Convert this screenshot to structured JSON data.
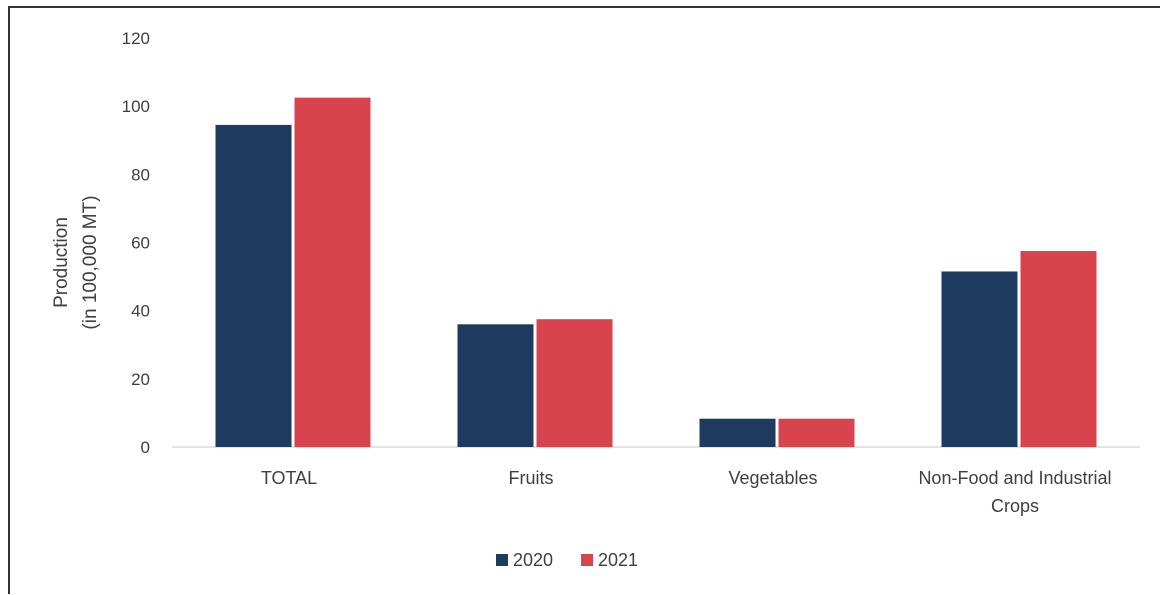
{
  "chart_data": {
    "type": "bar",
    "categories": [
      [
        "TOTAL"
      ],
      [
        "Fruits"
      ],
      [
        "Vegetables"
      ],
      [
        "Non-Food and Industrial",
        "Crops"
      ]
    ],
    "series": [
      {
        "name": "2020",
        "color": "#1f3a5f",
        "values": [
          94.5,
          36,
          8.3,
          51.5
        ]
      },
      {
        "name": "2021",
        "color": "#d9434e",
        "values": [
          102.5,
          37.5,
          8.3,
          57.5
        ]
      }
    ],
    "ylabel": [
      "Production",
      "(in 100,000 MT)"
    ],
    "ylim": [
      0,
      120
    ],
    "yticks": [
      0,
      20,
      40,
      60,
      80,
      100,
      120
    ],
    "grid": false,
    "legend_position": "bottom"
  }
}
